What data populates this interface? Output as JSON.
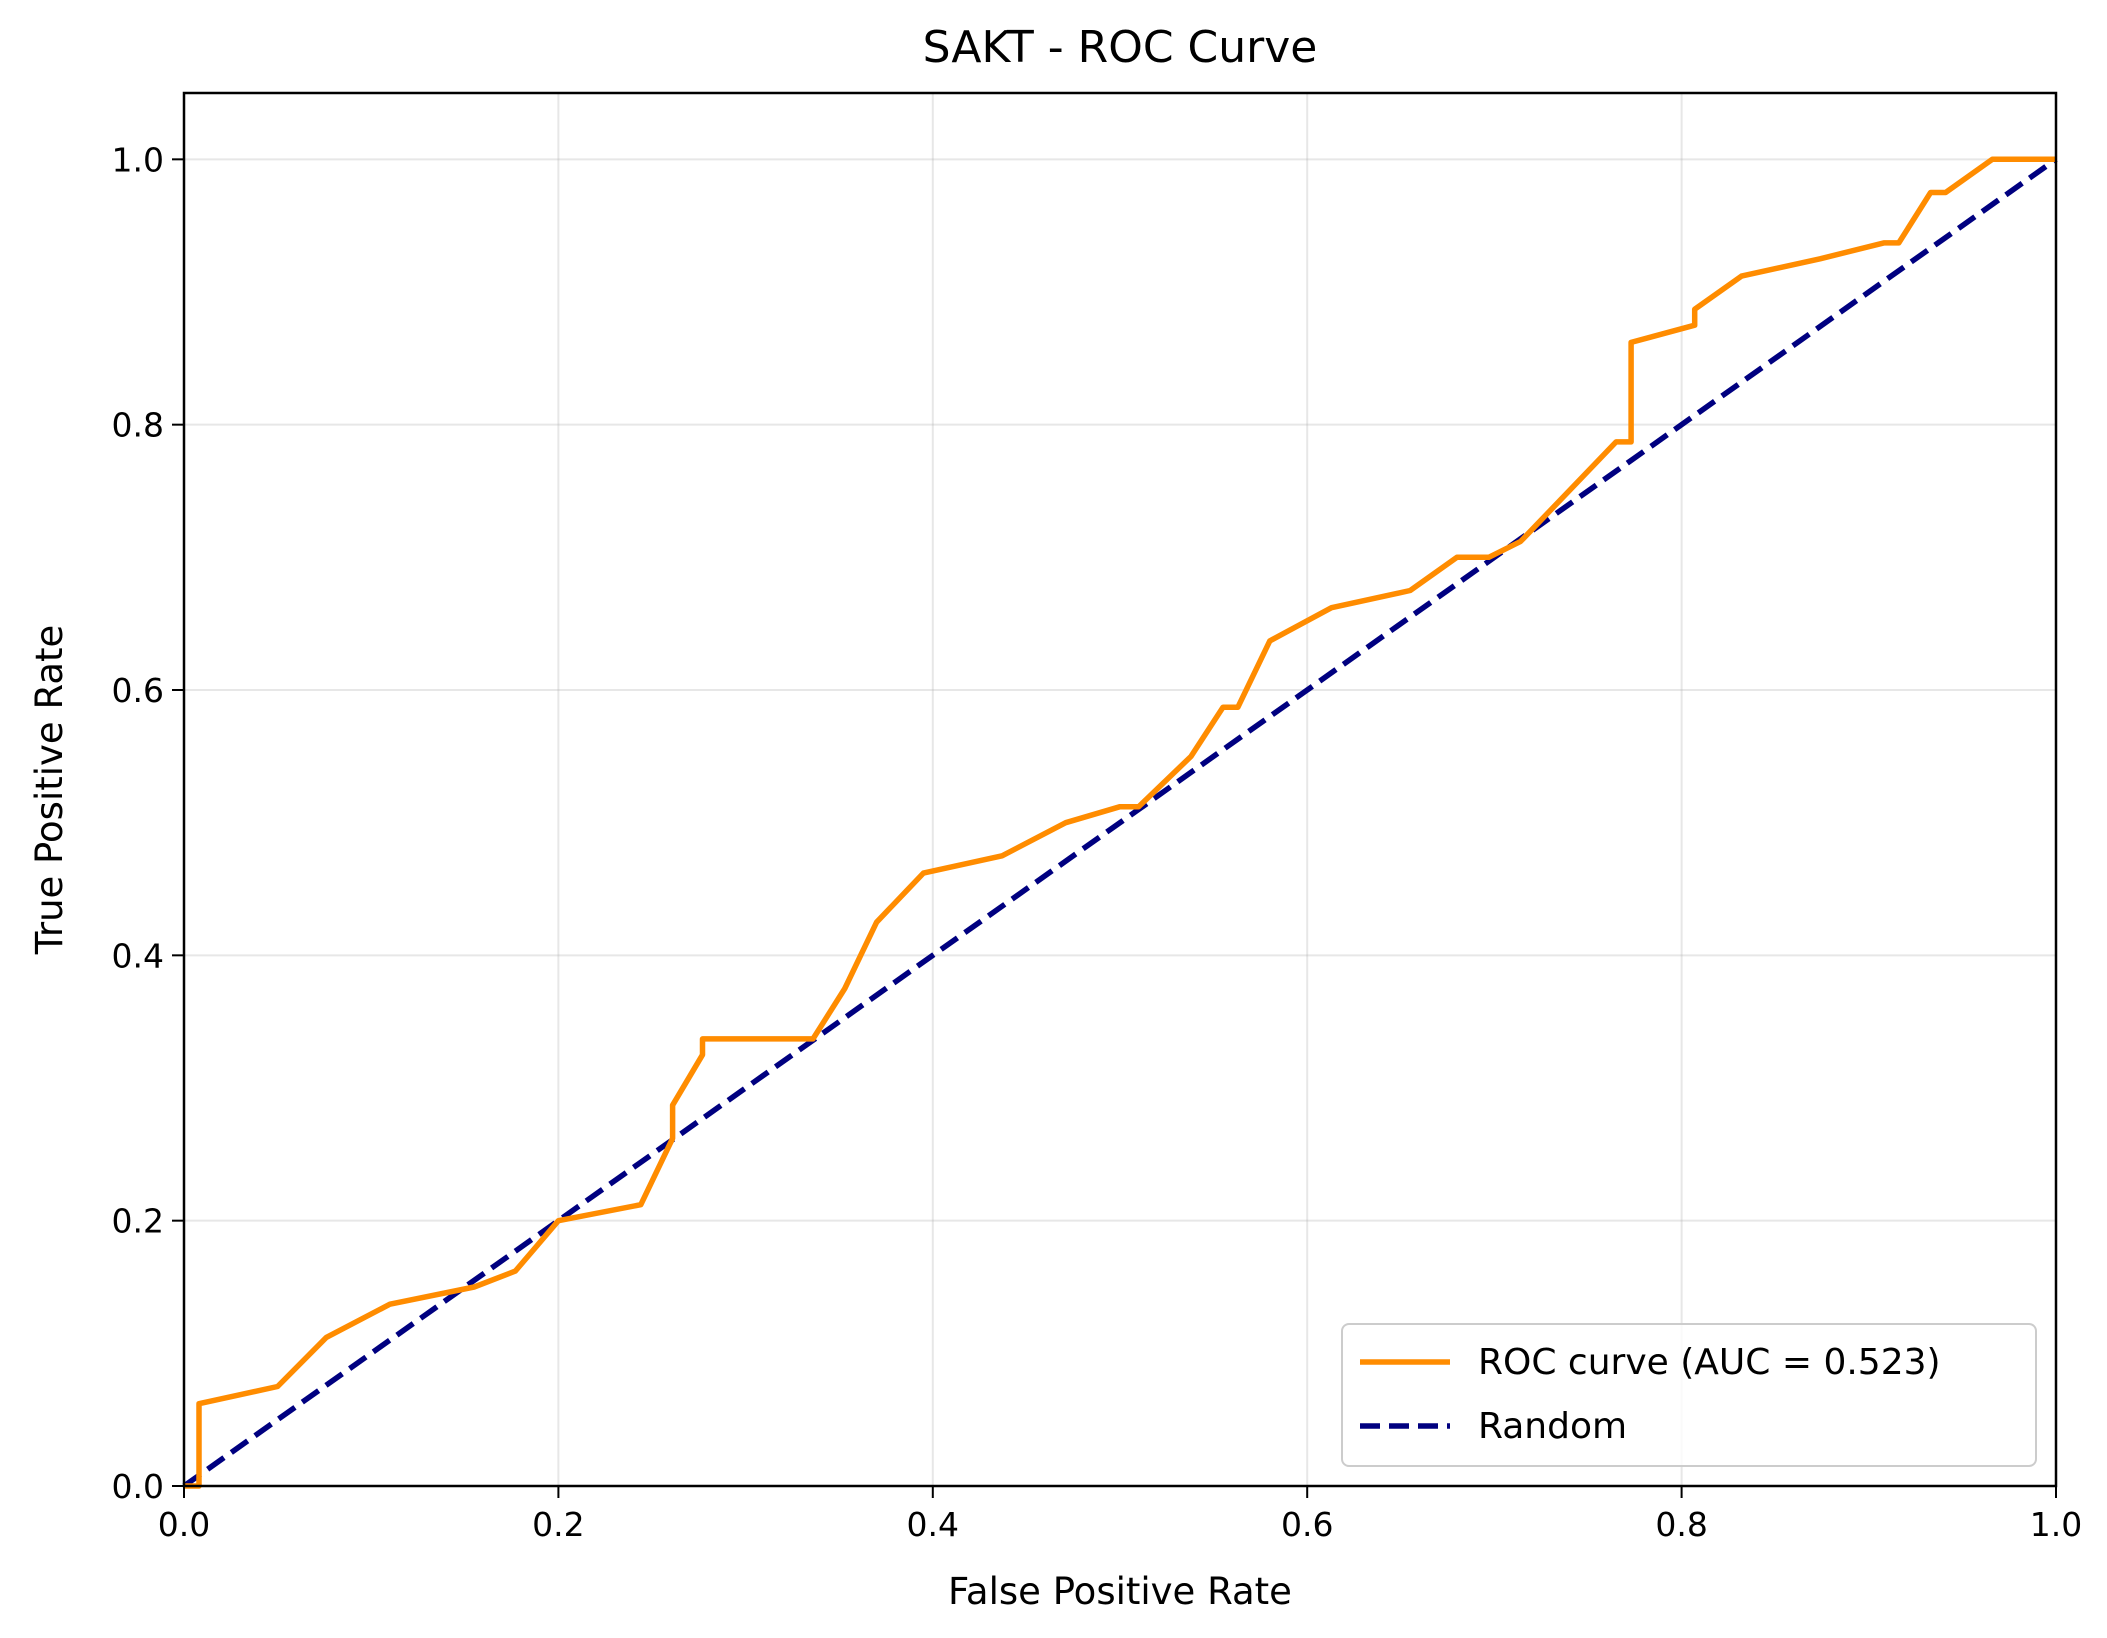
{
  "chart_data": {
    "type": "line",
    "title": "SAKT - ROC Curve",
    "xlabel": "False Positive Rate",
    "ylabel": "True Positive Rate",
    "xlim": [
      0.0,
      1.0
    ],
    "ylim": [
      0.0,
      1.05
    ],
    "x_ticks": [
      "0.0",
      "0.2",
      "0.4",
      "0.6",
      "0.8",
      "1.0"
    ],
    "y_ticks": [
      "0.0",
      "0.2",
      "0.4",
      "0.6",
      "0.8",
      "1.0"
    ],
    "grid": true,
    "legend_position": "lower-right",
    "series": [
      {
        "name": "ROC curve (AUC = 0.523)",
        "color": "#ff8c00",
        "style": "solid",
        "x": [
          0.0,
          0.008,
          0.008,
          0.05,
          0.076,
          0.11,
          0.155,
          0.177,
          0.2,
          0.244,
          0.261,
          0.261,
          0.277,
          0.277,
          0.336,
          0.353,
          0.37,
          0.395,
          0.437,
          0.471,
          0.5,
          0.51,
          0.538,
          0.555,
          0.563,
          0.58,
          0.613,
          0.655,
          0.68,
          0.697,
          0.714,
          0.765,
          0.773,
          0.773,
          0.807,
          0.807,
          0.832,
          0.874,
          0.908,
          0.916,
          0.933,
          0.941,
          0.966,
          1.0
        ],
        "y": [
          0.0,
          0.0,
          0.062,
          0.075,
          0.112,
          0.137,
          0.15,
          0.162,
          0.2,
          0.212,
          0.262,
          0.287,
          0.325,
          0.337,
          0.337,
          0.375,
          0.425,
          0.462,
          0.475,
          0.5,
          0.512,
          0.512,
          0.55,
          0.587,
          0.587,
          0.637,
          0.662,
          0.675,
          0.7,
          0.7,
          0.712,
          0.787,
          0.787,
          0.862,
          0.875,
          0.887,
          0.912,
          0.925,
          0.937,
          0.937,
          0.975,
          0.975,
          1.0,
          1.0
        ]
      },
      {
        "name": "Random",
        "color": "#000080",
        "style": "dashed",
        "x": [
          0.0,
          1.0
        ],
        "y": [
          0.0,
          1.0
        ]
      }
    ]
  }
}
